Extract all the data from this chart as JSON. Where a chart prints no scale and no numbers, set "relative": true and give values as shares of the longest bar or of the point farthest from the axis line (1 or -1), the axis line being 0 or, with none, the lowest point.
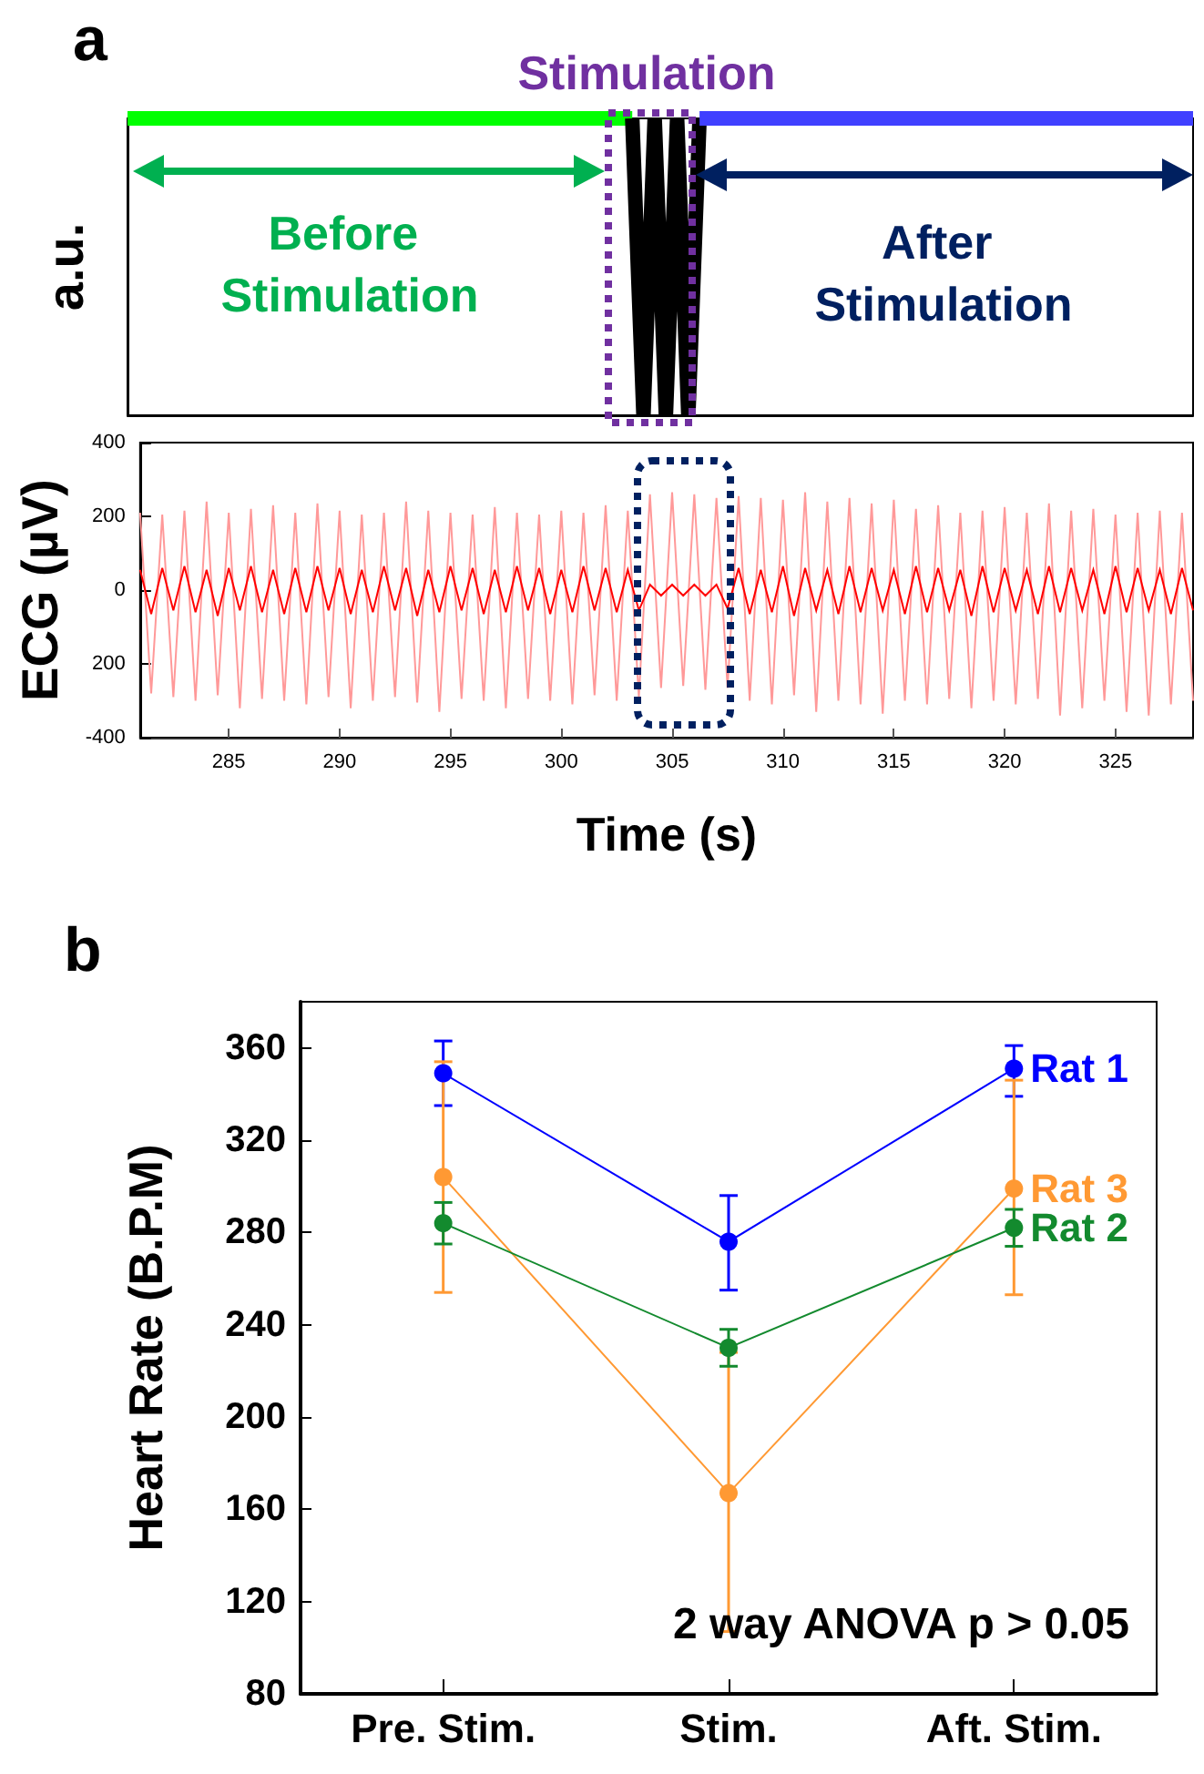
{
  "chart_data": [
    {
      "type": "line",
      "title": "a",
      "ylabel": "a.u.",
      "relative": true,
      "tick_labels": false,
      "grid": false,
      "legend": false,
      "marker": "none",
      "categories": [
        null,
        null,
        null,
        null,
        null,
        null,
        null,
        null,
        null,
        null,
        null,
        null,
        null,
        null,
        null,
        null,
        null,
        null,
        null,
        null,
        null,
        null,
        null,
        null,
        null,
        null,
        null,
        null,
        null,
        null,
        null,
        null,
        null,
        null,
        null,
        null,
        null,
        null,
        null,
        null,
        null,
        null,
        null,
        null,
        null,
        null,
        null,
        null,
        null,
        null,
        null,
        null,
        null,
        null,
        null,
        null,
        null,
        null,
        null,
        null,
        null,
        null,
        null,
        null,
        null,
        null,
        null,
        null,
        null,
        null,
        null,
        null,
        null,
        null,
        null,
        null,
        null,
        null,
        null,
        null,
        null,
        null,
        null,
        null,
        null,
        null,
        null,
        null,
        null,
        null,
        null,
        null,
        null,
        null,
        null,
        null
      ],
      "annotations": [
        "Stimulation",
        "Before Stimulation",
        "After Stimulation"
      ],
      "series": [
        {
          "color": "#00ff00",
          "values": [
            1,
            1,
            1,
            1,
            1,
            1,
            1,
            1,
            1,
            1,
            1,
            1,
            1,
            1,
            1,
            1,
            1,
            1,
            1,
            1,
            1,
            1,
            1,
            1,
            1,
            1,
            1,
            1,
            1,
            1,
            1,
            1,
            1,
            1,
            1,
            1,
            1,
            1,
            1,
            1,
            1,
            1,
            1,
            1,
            1,
            1,
            null,
            null,
            null,
            null,
            null,
            null,
            null,
            null,
            null,
            null,
            null,
            null,
            null,
            null,
            null,
            null,
            null,
            null,
            null,
            null,
            null,
            null,
            null,
            null,
            null,
            null,
            null,
            null,
            null,
            null,
            null,
            null,
            null,
            null,
            null,
            null,
            null,
            null,
            null,
            null,
            null,
            null,
            null,
            null,
            null,
            null,
            null,
            null,
            null,
            null
          ]
        },
        {
          "color": "#000000",
          "values": [
            null,
            null,
            null,
            null,
            null,
            null,
            null,
            null,
            null,
            null,
            null,
            null,
            null,
            null,
            null,
            null,
            null,
            null,
            null,
            null,
            null,
            null,
            null,
            null,
            null,
            null,
            null,
            null,
            null,
            null,
            null,
            null,
            null,
            null,
            null,
            null,
            null,
            null,
            null,
            null,
            null,
            null,
            null,
            null,
            null,
            1,
            0,
            1,
            0,
            1,
            0,
            1,
            null,
            null,
            null,
            null,
            null,
            null,
            null,
            null,
            null,
            null,
            null,
            null,
            null,
            null,
            null,
            null,
            null,
            null,
            null,
            null,
            null,
            null,
            null,
            null,
            null,
            null,
            null,
            null,
            null,
            null,
            null,
            null,
            null,
            null,
            null,
            null,
            null,
            null,
            null,
            null,
            null,
            null,
            null,
            null
          ]
        },
        {
          "color": "#4040ff",
          "values": [
            null,
            null,
            null,
            null,
            null,
            null,
            null,
            null,
            null,
            null,
            null,
            null,
            null,
            null,
            null,
            null,
            null,
            null,
            null,
            null,
            null,
            null,
            null,
            null,
            null,
            null,
            null,
            null,
            null,
            null,
            null,
            null,
            null,
            null,
            null,
            null,
            null,
            null,
            null,
            null,
            null,
            null,
            null,
            null,
            null,
            null,
            null,
            null,
            null,
            null,
            null,
            1,
            1,
            1,
            1,
            1,
            1,
            1,
            1,
            1,
            1,
            1,
            1,
            1,
            1,
            1,
            1,
            1,
            1,
            1,
            1,
            1,
            1,
            1,
            1,
            1,
            1,
            1,
            1,
            1,
            1,
            1,
            1,
            1,
            1,
            1,
            1,
            1,
            1,
            1,
            1,
            1,
            1,
            1,
            1,
            1
          ]
        }
      ]
    },
    {
      "type": "line",
      "xlabel": "Time (s)",
      "ylabel": "ECG (µV)",
      "xlim": [
        281,
        328.5
      ],
      "xticks": [
        285,
        290,
        295,
        300,
        305,
        310,
        315,
        320,
        325
      ],
      "ylim": [
        -400,
        400
      ],
      "yticks": [
        {
          "value": -400,
          "label": "-400"
        },
        {
          "value": -200,
          "label": "200"
        },
        0,
        200,
        400
      ],
      "grid": false,
      "legend": false,
      "marker": "none",
      "x": [
        281,
        281.5,
        282,
        282.5,
        283,
        283.5,
        284,
        284.5,
        285,
        285.5,
        286,
        286.5,
        287,
        287.5,
        288,
        288.5,
        289,
        289.5,
        290,
        290.5,
        291,
        291.5,
        292,
        292.5,
        293,
        293.5,
        294,
        294.5,
        295,
        295.5,
        296,
        296.5,
        297,
        297.5,
        298,
        298.5,
        299,
        299.5,
        300,
        300.5,
        301,
        301.5,
        302,
        302.5,
        303,
        303.5,
        304,
        304.5,
        305,
        305.5,
        306,
        306.5,
        307,
        307.5,
        308,
        308.5,
        309,
        309.5,
        310,
        310.5,
        311,
        311.5,
        312,
        312.5,
        313,
        313.5,
        314,
        314.5,
        315,
        315.5,
        316,
        316.5,
        317,
        317.5,
        318,
        318.5,
        319,
        319.5,
        320,
        320.5,
        321,
        321.5,
        322,
        322.5,
        323,
        323.5,
        324,
        324.5,
        325,
        325.5,
        326,
        326.5,
        327,
        327.5,
        328,
        328.5
      ],
      "series": [
        {
          "color": "#ff9999",
          "values": [
            210,
            -280,
            205,
            -290,
            215,
            -300,
            240,
            -285,
            210,
            -320,
            220,
            -295,
            230,
            -300,
            210,
            -310,
            235,
            -290,
            215,
            -320,
            205,
            -300,
            210,
            -290,
            240,
            -305,
            215,
            -330,
            210,
            -295,
            205,
            -300,
            225,
            -320,
            210,
            -295,
            205,
            -300,
            215,
            -310,
            210,
            -285,
            230,
            -300,
            215,
            -290,
            260,
            -265,
            265,
            -260,
            260,
            -270,
            250,
            -265,
            255,
            -300,
            250,
            -310,
            245,
            -285,
            265,
            -330,
            240,
            -300,
            250,
            -310,
            235,
            -335,
            245,
            -300,
            220,
            -310,
            230,
            -295,
            210,
            -320,
            215,
            -300,
            225,
            -310,
            210,
            -295,
            235,
            -340,
            215,
            -320,
            220,
            -300,
            205,
            -330,
            210,
            -340,
            215,
            -310,
            210,
            -300
          ]
        },
        {
          "color": "#ff0000",
          "values": [
            55,
            -65,
            60,
            -55,
            65,
            -60,
            55,
            -70,
            60,
            -55,
            65,
            -60,
            55,
            -65,
            60,
            -60,
            65,
            -55,
            60,
            -65,
            55,
            -60,
            65,
            -55,
            60,
            -70,
            55,
            -60,
            65,
            -55,
            60,
            -65,
            55,
            -60,
            65,
            -55,
            60,
            -65,
            55,
            -60,
            65,
            -55,
            60,
            -60,
            55,
            -55,
            15,
            -15,
            15,
            -15,
            15,
            -15,
            15,
            -50,
            60,
            -65,
            55,
            -60,
            65,
            -70,
            60,
            -55,
            55,
            -65,
            65,
            -60,
            60,
            -55,
            55,
            -65,
            65,
            -60,
            60,
            -55,
            55,
            -70,
            65,
            -60,
            60,
            -55,
            55,
            -65,
            65,
            -60,
            60,
            -55,
            55,
            -65,
            65,
            -60,
            60,
            -55,
            55,
            -65,
            60,
            -55
          ]
        }
      ]
    },
    {
      "type": "line",
      "title": "b",
      "ylabel": "Heart Rate (B.P.M)",
      "categories": [
        "Pre. Stim.",
        "Stim.",
        "Aft. Stim."
      ],
      "ylim": [
        80,
        380
      ],
      "yticks": [
        80,
        120,
        160,
        200,
        240,
        280,
        320,
        360
      ],
      "grid": false,
      "legend": false,
      "marker": "circle",
      "annotations": [
        "2 way ANOVA p > 0.05"
      ],
      "series": [
        {
          "name": "Rat 1",
          "color": "#0000ff",
          "values": [
            349,
            276,
            351
          ],
          "errors": [
            [
              335,
              363
            ],
            [
              255,
              296
            ],
            [
              339,
              361
            ]
          ]
        },
        {
          "name": "Rat 3",
          "color": "#ff9933",
          "values": [
            304,
            167,
            299
          ],
          "errors": [
            [
              254,
              354
            ],
            [
              107,
              228
            ],
            [
              253,
              346
            ]
          ]
        },
        {
          "name": "Rat 2",
          "color": "#138a2e",
          "values": [
            284,
            230,
            282
          ],
          "errors": [
            [
              275,
              293
            ],
            [
              222,
              238
            ],
            [
              274,
              290
            ]
          ]
        }
      ]
    }
  ]
}
